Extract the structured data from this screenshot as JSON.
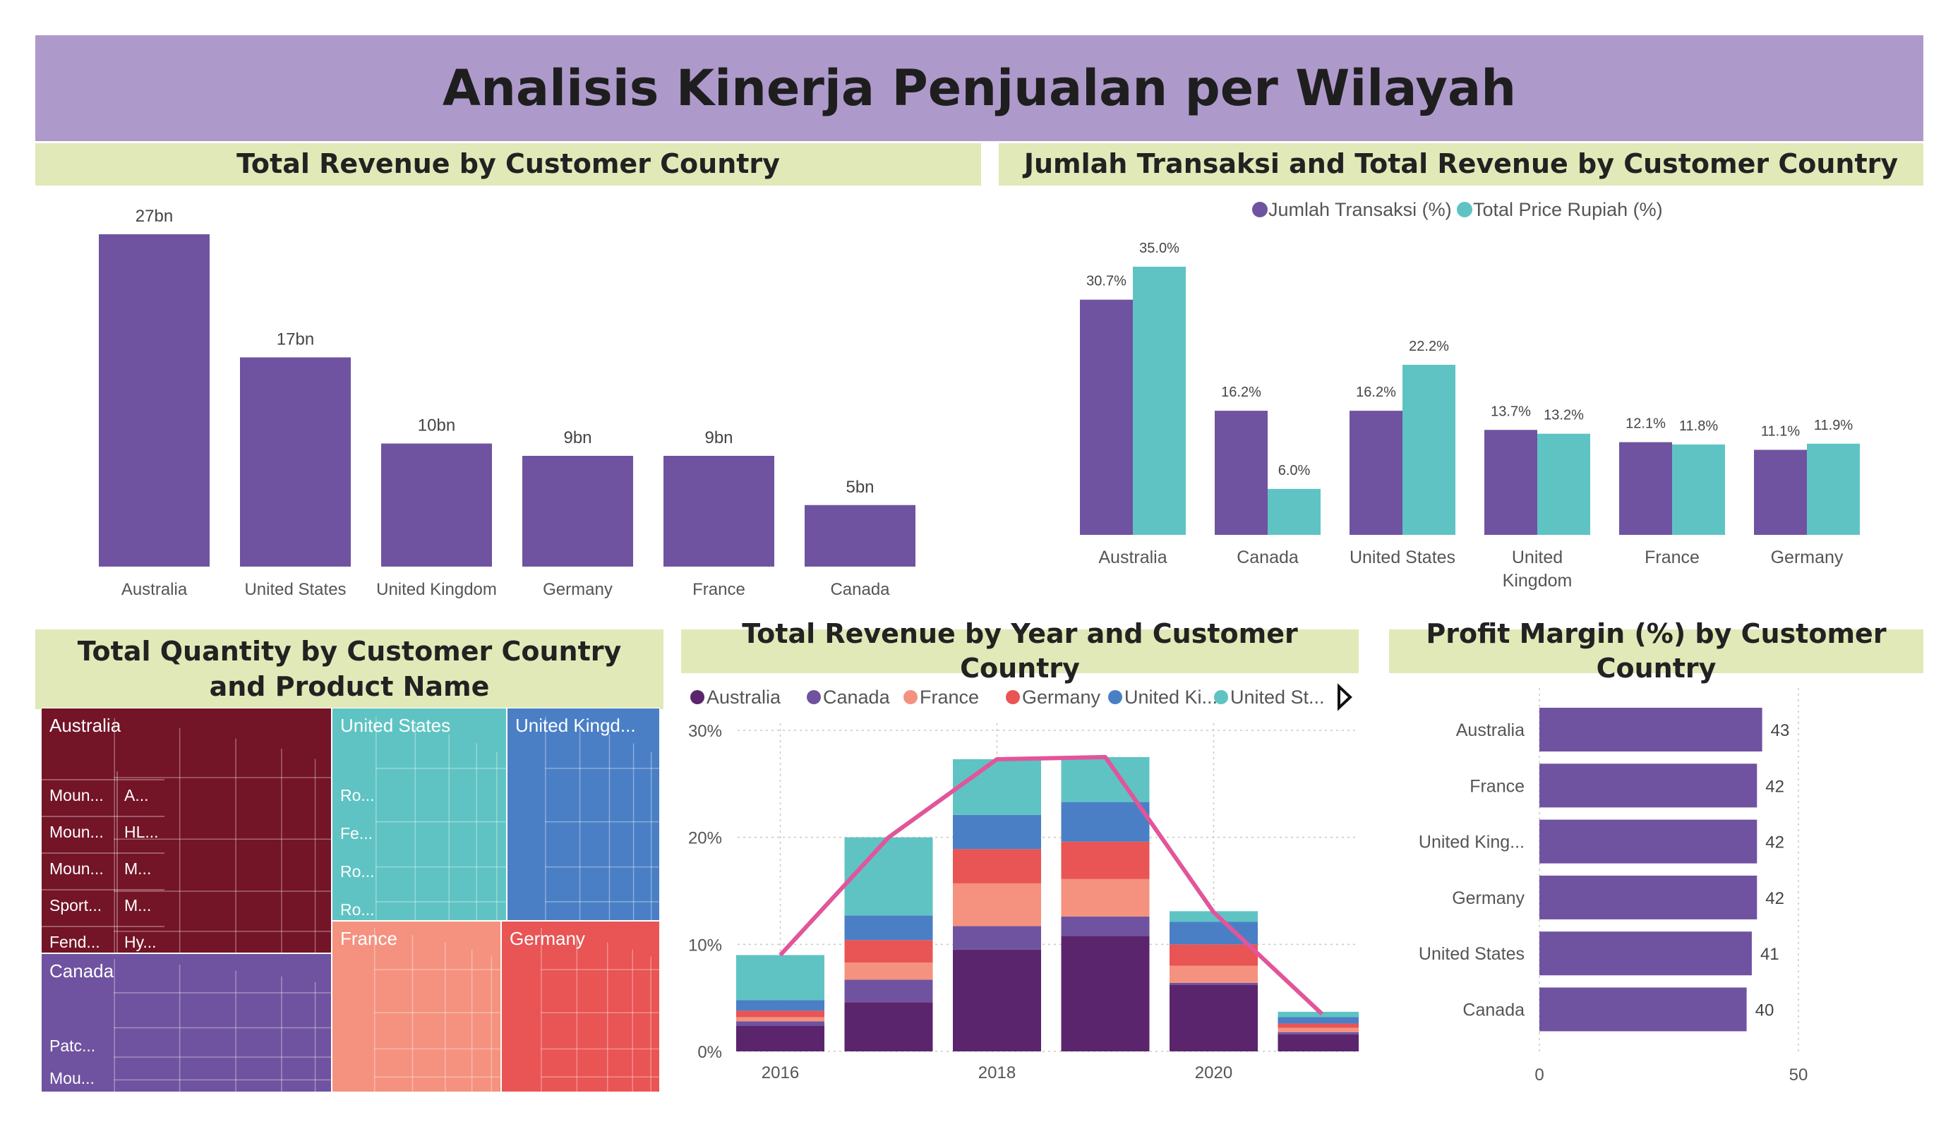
{
  "dashboard": {
    "title": "Analisis Kinerja Penjualan per Wilayah"
  },
  "colors": {
    "purple": "#6f53a0",
    "teal": "#5fc3c3",
    "pink_line": "#e2559a",
    "country": {
      "Australia": "#5b256d",
      "Canada": "#6f53a0",
      "France": "#f4927f",
      "Germany": "#e95454",
      "United Kingdom": "#4a7fc6",
      "United States": "#5fc3c3"
    }
  },
  "chart_data": [
    {
      "id": "revenue_by_country",
      "type": "bar",
      "title": "Total Revenue by Customer Country",
      "categories": [
        "Australia",
        "United States",
        "United Kingdom",
        "Germany",
        "France",
        "Canada"
      ],
      "values": [
        27,
        17,
        10,
        9,
        9,
        5
      ],
      "labels": [
        "27bn",
        "17bn",
        "10bn",
        "9bn",
        "9bn",
        "5bn"
      ],
      "ylim": [
        0,
        27
      ]
    },
    {
      "id": "transaksi_vs_revenue",
      "type": "bar",
      "title": "Jumlah Transaksi and Total Revenue by Customer Country",
      "categories": [
        "Australia",
        "Canada",
        "United States",
        "United Kingdom",
        "France",
        "Germany"
      ],
      "category_lines": [
        [
          "Australia"
        ],
        [
          "Canada"
        ],
        [
          "United States"
        ],
        [
          "United",
          "Kingdom"
        ],
        [
          "France"
        ],
        [
          "Germany"
        ]
      ],
      "series": [
        {
          "name": "Jumlah Transaksi (%)",
          "values": [
            30.7,
            16.2,
            16.2,
            13.7,
            12.1,
            11.1
          ],
          "labels": [
            "30.7%",
            "16.2%",
            "16.2%",
            "13.7%",
            "12.1%",
            "11.1%"
          ]
        },
        {
          "name": "Total Price Rupiah (%)",
          "values": [
            35.0,
            6.0,
            22.2,
            13.2,
            11.8,
            11.9
          ],
          "labels": [
            "35.0%",
            "6.0%",
            "22.2%",
            "13.2%",
            "11.8%",
            "11.9%"
          ]
        }
      ],
      "ylim": [
        0,
        35
      ]
    },
    {
      "id": "quantity_treemap",
      "type": "treemap",
      "title": "Total Quantity by Customer Country and Product Name",
      "groups": [
        {
          "name": "Australia",
          "items": [
            "Moun...",
            "A...",
            "Moun...",
            "HL...",
            "Moun...",
            "M...",
            "Sport...",
            "M...",
            "Fend...",
            "Hy..."
          ]
        },
        {
          "name": "United States",
          "items": [
            "Ro...",
            "Fe...",
            "Ro...",
            "Ro..."
          ]
        },
        {
          "name": "United Kingd...",
          "items": []
        },
        {
          "name": "Canada",
          "items": [
            "Patc...",
            "Mou..."
          ]
        },
        {
          "name": "France",
          "items": []
        },
        {
          "name": "Germany",
          "items": []
        }
      ]
    },
    {
      "id": "revenue_by_year",
      "type": "bar",
      "stacked": true,
      "title": "Total Revenue by Year and Customer Country",
      "legend": [
        "Australia",
        "Canada",
        "France",
        "Germany",
        "United Ki...",
        "United St..."
      ],
      "x_ticks": [
        "2016",
        "2018",
        "2020"
      ],
      "y_ticks": [
        "0%",
        "10%",
        "20%",
        "30%"
      ],
      "ylim": [
        0,
        30
      ],
      "years": [
        2016,
        2017,
        2018,
        2019,
        2020,
        2021
      ],
      "series": [
        {
          "name": "Australia",
          "values": [
            2.4,
            4.6,
            9.5,
            10.8,
            6.2,
            1.6
          ]
        },
        {
          "name": "Canada",
          "values": [
            0.4,
            2.1,
            2.2,
            1.8,
            0.2,
            0.2
          ]
        },
        {
          "name": "France",
          "values": [
            0.4,
            1.6,
            4.0,
            3.5,
            1.6,
            0.4
          ]
        },
        {
          "name": "Germany",
          "values": [
            0.6,
            2.1,
            3.2,
            3.5,
            2.0,
            0.4
          ]
        },
        {
          "name": "United Kingdom",
          "values": [
            1.0,
            2.3,
            3.2,
            3.7,
            2.1,
            0.6
          ]
        },
        {
          "name": "United States",
          "values": [
            4.2,
            7.3,
            5.2,
            4.2,
            1.0,
            0.5
          ]
        }
      ],
      "line": {
        "values": [
          9.0,
          20.0,
          27.3,
          27.5,
          13.0,
          3.5
        ]
      }
    },
    {
      "id": "profit_margin",
      "type": "bar",
      "orientation": "horizontal",
      "title": "Profit Margin (%) by Customer Country",
      "categories": [
        "Australia",
        "France",
        "United King...",
        "Germany",
        "United States",
        "Canada"
      ],
      "values": [
        43,
        42,
        42,
        42,
        41,
        40
      ],
      "x_ticks": [
        "0",
        "50"
      ],
      "xlim": [
        0,
        50
      ]
    }
  ]
}
